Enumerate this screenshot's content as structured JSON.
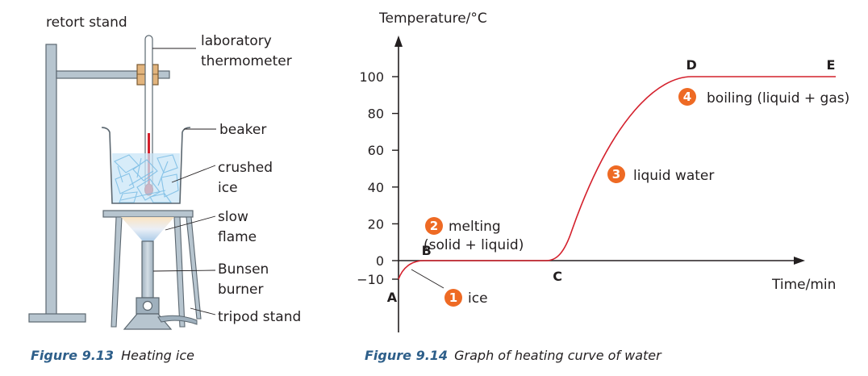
{
  "apparatus": {
    "labels": {
      "retort_stand": "retort stand",
      "thermometer_1": "laboratory",
      "thermometer_2": "thermometer",
      "beaker": "beaker",
      "ice_1": "crushed",
      "ice_2": "ice",
      "flame_1": "slow",
      "flame_2": "flame",
      "burner_1": "Bunsen",
      "burner_2": "burner",
      "tripod": "tripod stand"
    },
    "caption": {
      "number": "Figure 9.13",
      "text": "Heating ice"
    }
  },
  "chart_data": {
    "type": "line",
    "ylabel": "Temperature/°C",
    "xlabel": "Time/min",
    "y_ticks": [
      100,
      80,
      60,
      40,
      20,
      0,
      -10
    ],
    "ylim": [
      -10,
      100
    ],
    "points": [
      {
        "label": "A",
        "x": 0,
        "y": -10
      },
      {
        "label": "B",
        "x": 4,
        "y": 0
      },
      {
        "label": "C",
        "x": 36,
        "y": 0
      },
      {
        "label": "D",
        "x": 67,
        "y": 100
      },
      {
        "label": "E",
        "x": 100,
        "y": 100
      }
    ],
    "stages": [
      {
        "number": "1",
        "text": "ice"
      },
      {
        "number": "2",
        "text": "melting",
        "text2": "(solid + liquid)"
      },
      {
        "number": "3",
        "text": "liquid water"
      },
      {
        "number": "4",
        "text": "boiling (liquid + gas)"
      }
    ],
    "colors": {
      "curve": "#d4202c",
      "badge": "#ee6a24",
      "axis": "#231f20"
    },
    "caption": {
      "number": "Figure 9.14",
      "text": "Graph of heating curve of water"
    }
  }
}
